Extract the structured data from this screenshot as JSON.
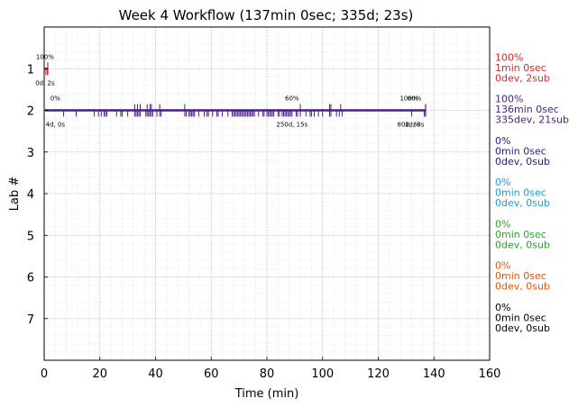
{
  "chart_data": {
    "type": "timeline",
    "title": "Week 4 Workflow (137min 0sec; 335d; 23s)",
    "xlabel": "Time (min)",
    "ylabel": "Lab #",
    "xlim": [
      0,
      160
    ],
    "ylim": [
      0,
      8
    ],
    "y_inverted": true,
    "x_ticks": [
      0,
      20,
      40,
      60,
      80,
      100,
      120,
      140,
      160
    ],
    "y_ticks": [
      1,
      2,
      3,
      4,
      5,
      6,
      7
    ],
    "grid": true,
    "colors": {
      "lab1": "#d62728",
      "lab2": "#4b1a8f",
      "lab3": "#1f1f7a",
      "lab4": "#1f9ad6",
      "lab5": "#2ca02c",
      "lab6": "#e0560a",
      "lab7": "#000000"
    },
    "labs": [
      {
        "lab": 1,
        "color": "#d62728",
        "bar": [
          0.3,
          1.3
        ],
        "stat": [
          "100%",
          "1min 0sec",
          "0dev, 2sub"
        ],
        "ticks": [
          0.6,
          1.1
        ],
        "annotations": [
          {
            "x": 0.3,
            "above": "100%",
            "below": "0d, 2s"
          }
        ]
      },
      {
        "lab": 2,
        "color": "#4b1a8f",
        "bar": [
          0.3,
          137
        ],
        "stat": [
          "100%",
          "136min 0sec",
          "335dev, 21sub"
        ],
        "ticks": [
          7,
          11.5,
          18,
          19.5,
          20.5,
          21.5,
          22,
          22.5,
          26,
          27.5,
          28,
          30,
          32.5,
          33,
          33.5,
          34,
          34.5,
          36.5,
          37,
          37.5,
          38,
          38.5,
          39,
          40.5,
          41.5,
          42,
          50.5,
          51,
          52,
          52.5,
          53,
          53.5,
          54,
          55.5,
          57.5,
          58.5,
          59,
          60.5,
          62,
          62.5,
          64,
          66,
          67.5,
          68,
          68.5,
          69,
          69.5,
          70,
          70.5,
          71,
          71.5,
          72,
          72.5,
          73,
          73.5,
          74,
          74.5,
          75,
          75.5,
          77,
          78.5,
          79,
          80,
          80.5,
          81,
          81.5,
          82,
          82.5,
          84,
          84.5,
          85.5,
          86,
          86.5,
          87,
          87.5,
          88,
          88.5,
          89,
          90.5,
          91,
          92,
          94,
          95.5,
          96,
          97,
          98.5,
          100,
          102.5,
          103,
          105,
          106,
          107,
          132,
          136.5
        ],
        "tall_ticks": [
          32.5,
          33.5,
          34.5,
          37,
          38,
          38.5,
          41.5,
          50.5,
          92,
          102.5,
          103,
          106.5
        ],
        "annotations": [
          {
            "x": 4,
            "above": "0%",
            "below": "4d, 0s"
          },
          {
            "x": 89,
            "above": "60%",
            "below": "250d, 15s"
          },
          {
            "x": 131,
            "above": "100%",
            "below": "80d, 6s"
          },
          {
            "x": 133,
            "above": "60%",
            "below": "1d, 0s"
          }
        ]
      },
      {
        "lab": 3,
        "color": "#1f1f7a",
        "stat": [
          "0%",
          "0min 0sec",
          "0dev, 0sub"
        ]
      },
      {
        "lab": 4,
        "color": "#1f9ad6",
        "stat": [
          "0%",
          "0min 0sec",
          "0dev, 0sub"
        ]
      },
      {
        "lab": 5,
        "color": "#2ca02c",
        "stat": [
          "0%",
          "0min 0sec",
          "0dev, 0sub"
        ]
      },
      {
        "lab": 6,
        "color": "#e0560a",
        "stat": [
          "0%",
          "0min 0sec",
          "0dev, 0sub"
        ]
      },
      {
        "lab": 7,
        "color": "#000000",
        "stat": [
          "0%",
          "0min 0sec",
          "0dev, 0sub"
        ]
      }
    ]
  }
}
